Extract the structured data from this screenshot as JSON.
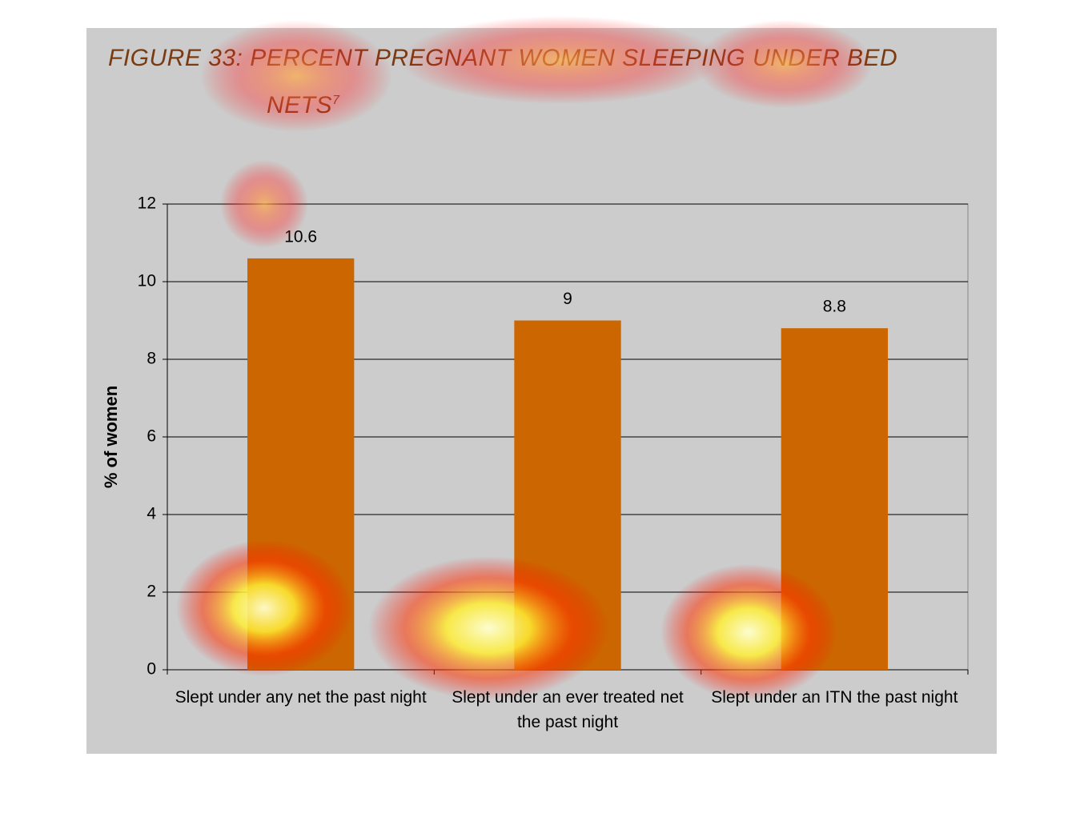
{
  "chart_data": {
    "type": "bar",
    "title": "FIGURE 33: PERCENT PREGNANT WOMEN SLEEPING UNDER BED NETS",
    "title_superscript": "7",
    "ylabel": "% of women",
    "categories": [
      "Slept under any net the past night",
      "Slept under an ever treated net the past night",
      "Slept under an ITN the past night"
    ],
    "values": [
      10.6,
      9,
      8.8
    ],
    "color": "#cc6600",
    "ylim": [
      0,
      12
    ],
    "yticks": [
      0,
      2,
      4,
      6,
      8,
      10,
      12
    ],
    "grid": true
  }
}
